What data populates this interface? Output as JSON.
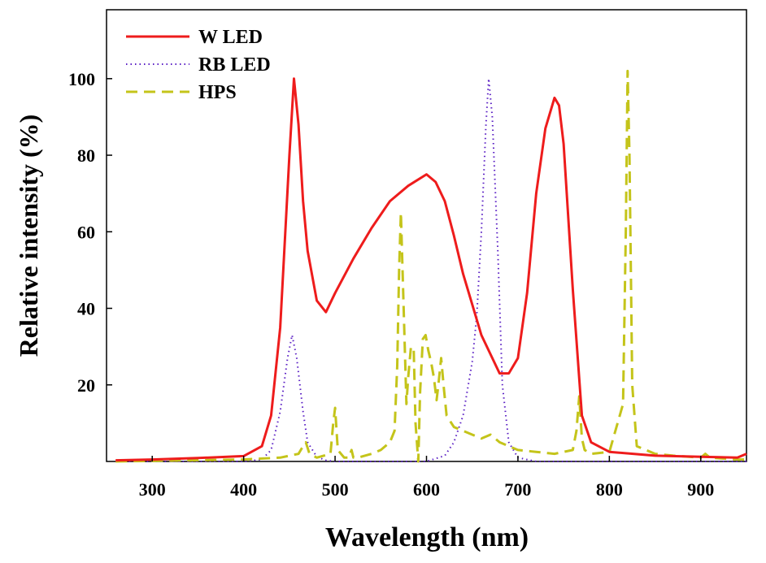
{
  "chart_data": {
    "type": "line",
    "title": "",
    "xlabel": "Wavelength (nm)",
    "ylabel": "Relative intensity (%)",
    "xlim": [
      250,
      950
    ],
    "ylim": [
      0,
      118
    ],
    "x_ticks": [
      300,
      400,
      500,
      600,
      700,
      800,
      900
    ],
    "y_ticks": [
      20,
      40,
      60,
      80,
      100
    ],
    "grid": false,
    "legend_position": "top-left",
    "colors": {
      "w_led": "#ee1c1c",
      "rb_led": "#5a1fc4",
      "hps": "#c4c41a"
    },
    "series": [
      {
        "name": "W LED",
        "style": "solid",
        "x": [
          260,
          300,
          350,
          400,
          420,
          430,
          440,
          450,
          455,
          460,
          465,
          470,
          480,
          490,
          500,
          520,
          540,
          560,
          580,
          600,
          610,
          620,
          630,
          640,
          660,
          680,
          690,
          700,
          710,
          720,
          730,
          740,
          745,
          750,
          760,
          770,
          780,
          800,
          850,
          900,
          940,
          950
        ],
        "y": [
          0.3,
          0.5,
          0.9,
          1.4,
          4,
          12,
          35,
          80,
          100,
          88,
          68,
          55,
          42,
          39,
          44,
          53,
          61,
          68,
          72,
          75,
          73,
          68,
          59,
          49,
          33,
          23,
          23,
          27,
          44,
          70,
          87,
          95,
          93,
          83,
          45,
          12,
          5,
          2.5,
          1.5,
          1.2,
          1,
          2
        ]
      },
      {
        "name": "RB LED",
        "style": "dotted",
        "x": [
          260,
          400,
          420,
          430,
          440,
          448,
          453,
          458,
          465,
          470,
          480,
          490,
          500,
          560,
          600,
          620,
          630,
          640,
          650,
          655,
          660,
          665,
          668,
          672,
          678,
          683,
          690,
          700,
          720,
          950
        ],
        "y": [
          0,
          0,
          0.5,
          3,
          13,
          27,
          33,
          27,
          13,
          5,
          1.2,
          0.3,
          0,
          0,
          0,
          1.5,
          5,
          12,
          26,
          38,
          60,
          88,
          100,
          90,
          55,
          20,
          5,
          1,
          0,
          0
        ]
      },
      {
        "name": "HPS",
        "style": "dashed",
        "x": [
          260,
          400,
          440,
          460,
          465,
          468,
          472,
          480,
          495,
          498,
          500,
          503,
          510,
          515,
          518,
          520,
          525,
          540,
          550,
          560,
          565,
          568,
          570,
          572,
          575,
          578,
          580,
          583,
          586,
          588,
          591,
          593,
          596,
          599,
          602,
          605,
          608,
          611,
          613,
          616,
          619,
          622,
          630,
          640,
          650,
          660,
          670,
          680,
          690,
          700,
          720,
          740,
          760,
          764,
          767,
          770,
          773,
          780,
          800,
          815,
          818,
          820,
          822,
          825,
          830,
          850,
          870,
          900,
          905,
          910,
          940,
          950
        ],
        "y": [
          0,
          0.5,
          1,
          2,
          4,
          5,
          2,
          1,
          2,
          10,
          14,
          3,
          1,
          1,
          3,
          1,
          1,
          2,
          3,
          5,
          8,
          25,
          50,
          65,
          40,
          15,
          22,
          30,
          29,
          10,
          0,
          18,
          32,
          33,
          29,
          26,
          22,
          16,
          20,
          27,
          19,
          12,
          9,
          8,
          7,
          6,
          7,
          5,
          4,
          3,
          2.5,
          2,
          3,
          8,
          17,
          6,
          3,
          2,
          2.5,
          15,
          60,
          102,
          80,
          20,
          4,
          2,
          1.5,
          1,
          2,
          1,
          0.5,
          0.5
        ]
      }
    ]
  }
}
